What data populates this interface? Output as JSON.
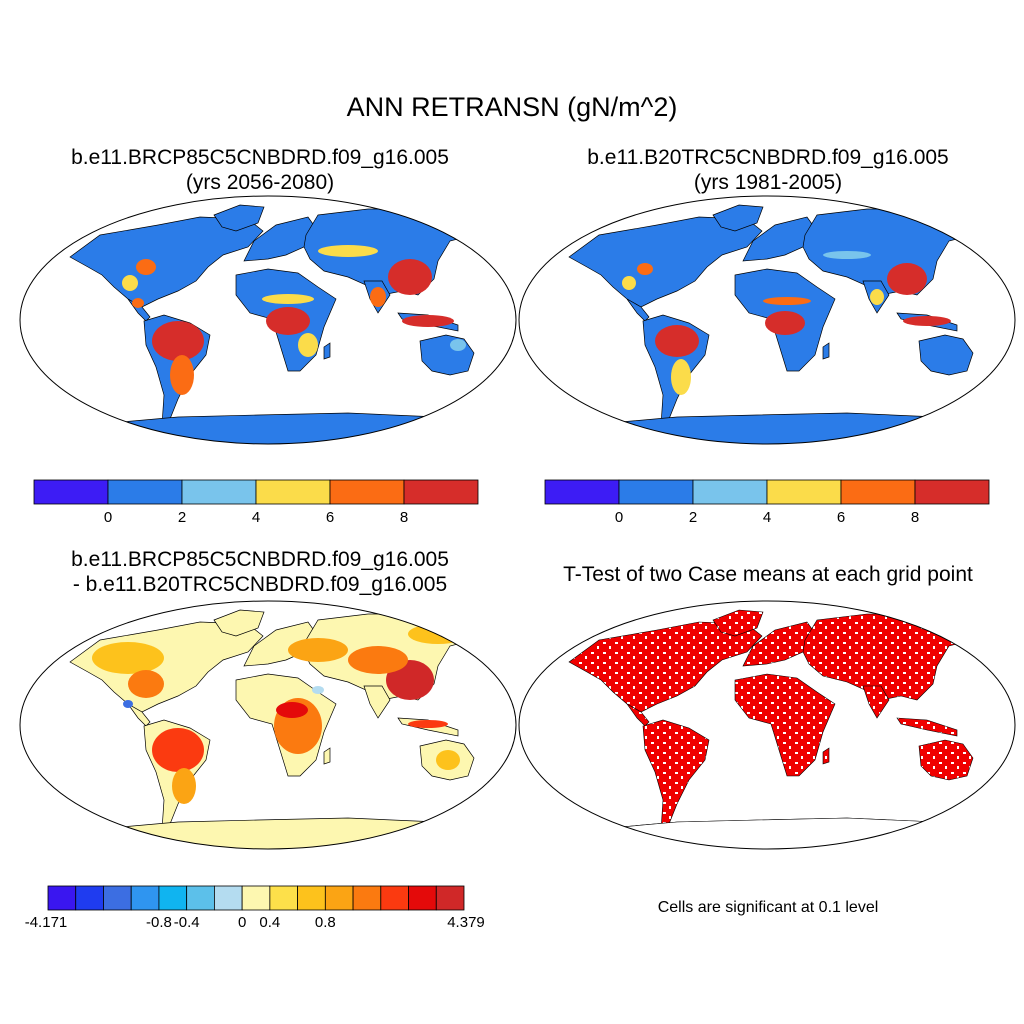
{
  "main_title": "ANN RETRANSN (gN/m^2)",
  "panels": {
    "case1": {
      "title_line1": "b.e11.BRCP85C5CNBDRD.f09_g16.005",
      "title_line2": "(yrs 2056-2080)"
    },
    "case2": {
      "title_line1": "b.e11.B20TRC5CNBDRD.f09_g16.005",
      "title_line2": "(yrs 1981-2005)"
    },
    "diff": {
      "title_line1": "b.e11.BRCP85C5CNBDRD.f09_g16.005",
      "title_line2": "- b.e11.B20TRC5CNBDRD.f09_g16.005"
    },
    "ttest": {
      "title_line1": "T-Test of two Case means at each grid point"
    }
  },
  "colorbar_main": {
    "colors": [
      "#3d1cf5",
      "#2b7ce8",
      "#79c4ec",
      "#fbdc4a",
      "#fb6c14",
      "#d62d2a"
    ],
    "labels": [
      "0",
      "2",
      "4",
      "6",
      "8"
    ]
  },
  "colorbar_diff": {
    "colors": [
      "#3a16f0",
      "#1f3cf0",
      "#3c6ee2",
      "#2f95f0",
      "#10b4f0",
      "#5cc0ea",
      "#b4dcf0",
      "#fdf7b0",
      "#fde04a",
      "#fdc21c",
      "#fba414",
      "#fb7a10",
      "#fb3a10",
      "#e40a0a",
      "#d02828"
    ],
    "labels": [
      "-4.171",
      "-0.8",
      "-0.4",
      "0",
      "0.4",
      "0.8",
      "4.379"
    ]
  },
  "ttest_note": "Cells are significant at 0.1 level"
}
